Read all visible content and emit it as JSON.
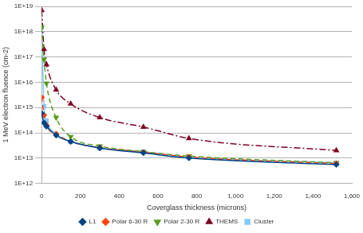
{
  "chart_data": {
    "type": "line",
    "x_label": "Coverglass thickness (microns)",
    "y_label": "1 MeV electron fluence (cm-2)",
    "x": [
      0,
      12.5,
      25,
      75,
      150,
      300,
      525,
      760,
      1520
    ],
    "series": [
      {
        "name": "L1",
        "color": "#004586",
        "marker": "diamond",
        "line_style": "solid",
        "values": [
          600000000000000.0,
          250000000000000.0,
          180000000000000.0,
          80000000000000.0,
          45000000000000.0,
          25000000000000.0,
          16000000000000.0,
          10000000000000.0,
          5500000000000.0
        ]
      },
      {
        "name": "Polar 6-30 R",
        "color": "#ff420e",
        "marker": "diamond",
        "line_style": "dashed",
        "values": [
          2500000000000000.0,
          500000000000000.0,
          200000000000000.0,
          90000000000000.0,
          45000000000000.0,
          26000000000000.0,
          17000000000000.0,
          11000000000000.0,
          6000000000000.0
        ]
      },
      {
        "name": "Polar 2-30 R",
        "color": "#579d1c",
        "marker": "triangle_down",
        "line_style": "dashed",
        "values": [
          1.5e+18,
          8e+16,
          9000000000000000.0,
          400000000000000.0,
          70000000000000.0,
          30000000000000.0,
          18000000000000.0,
          12000000000000.0,
          6500000000000.0
        ]
      },
      {
        "name": "THEMS",
        "color": "#7e0021",
        "marker": "triangle",
        "line_style": "dashdot",
        "values": [
          7e+18,
          2e+17,
          5e+16,
          5000000000000000.0,
          1400000000000000.0,
          400000000000000.0,
          170000000000000.0,
          60000000000000.0,
          20000000000000.0
        ]
      },
      {
        "name": "Cluster",
        "color": "#83caff",
        "marker": "square",
        "line_style": "solid",
        "values": [
          1.5e+18,
          1100000000000000.0,
          300000000000000.0,
          90000000000000.0,
          45000000000000.0,
          25000000000000.0,
          18000000000000.0,
          11000000000000.0,
          6500000000000.0
        ]
      }
    ],
    "xlim": [
      0,
      1600
    ],
    "xticks": [
      0,
      200,
      400,
      600,
      800,
      {
        "value": 1000,
        "label": "1,000"
      },
      {
        "value": 1200,
        "label": "1,200"
      },
      {
        "value": 1400,
        "label": "1,400"
      },
      {
        "value": 1600,
        "label": "1,600"
      }
    ],
    "ylim": [
      1000000000000.0,
      1e+19
    ],
    "yticks": [
      {
        "value": 1000000000000.0,
        "label": "1E+12"
      },
      {
        "value": 10000000000000.0,
        "label": "1E+13"
      },
      {
        "value": 100000000000000.0,
        "label": "1E+14"
      },
      {
        "value": 1000000000000000.0,
        "label": "1E+15"
      },
      {
        "value": 1e+16,
        "label": "1E+16"
      },
      {
        "value": 1e+17,
        "label": "1E+17"
      },
      {
        "value": 1e+18,
        "label": "1E+18"
      },
      {
        "value": 1e+19,
        "label": "1E+19"
      }
    ],
    "log": "y",
    "grid": "y",
    "legend": "bottom"
  }
}
